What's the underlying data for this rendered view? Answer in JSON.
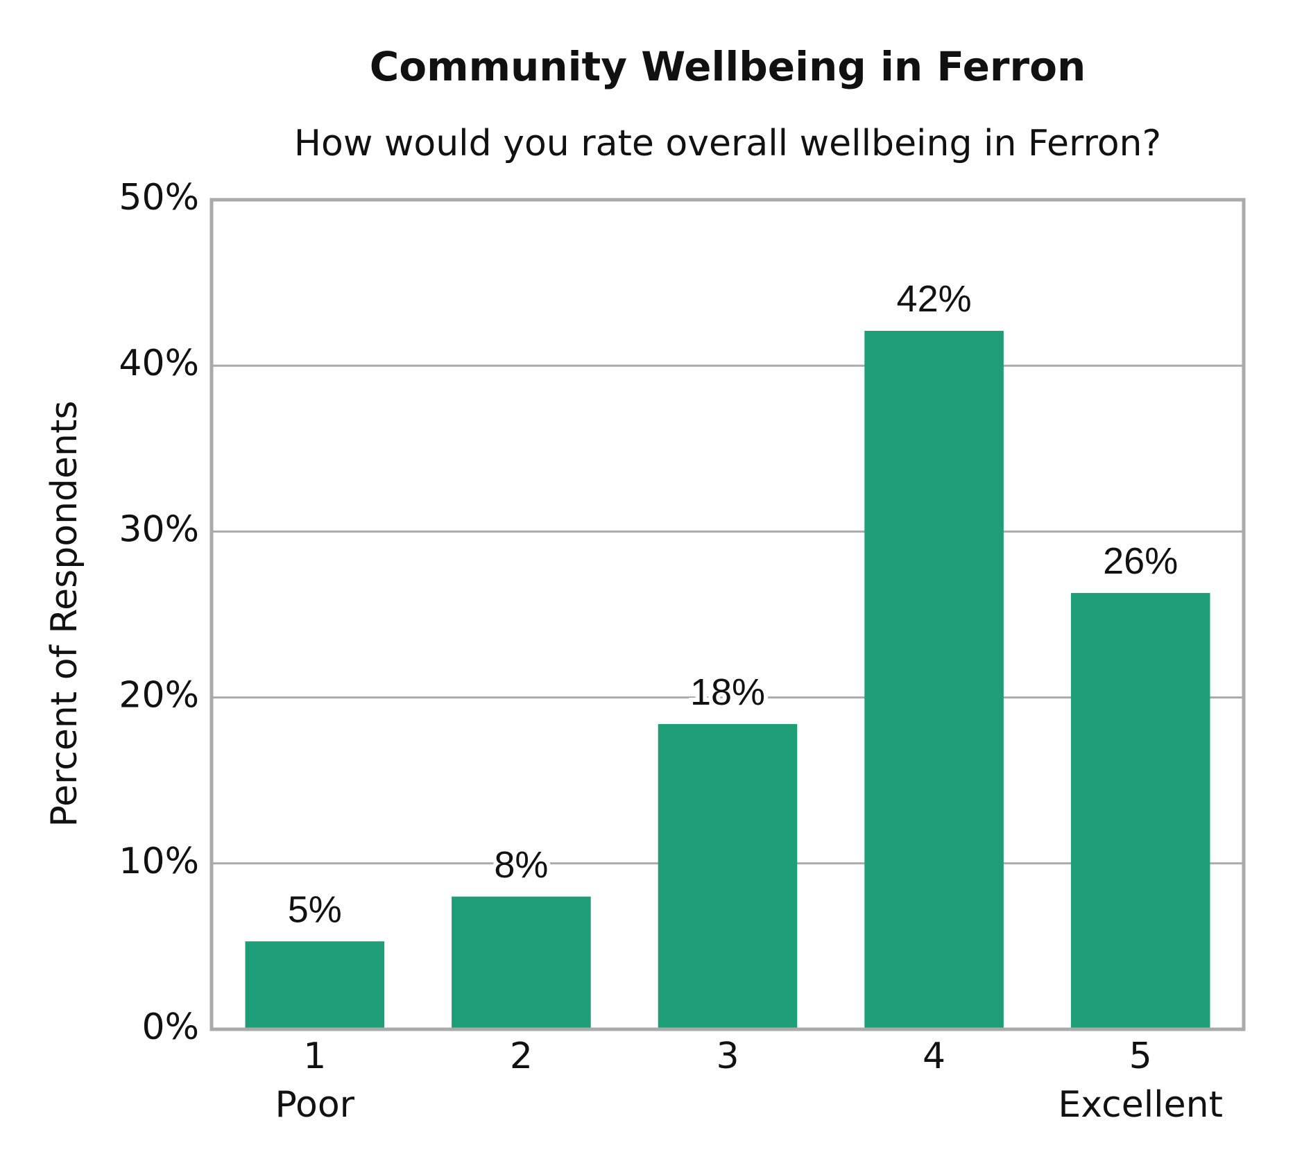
{
  "chart_data": {
    "type": "bar",
    "title": "Community Wellbeing in Ferron",
    "subtitle": "How would you rate overall wellbeing in Ferron?",
    "y_label": "Percent of Respondents",
    "categories": [
      "1",
      "2",
      "3",
      "4",
      "5"
    ],
    "category_sublabels": [
      "Poor",
      null,
      null,
      null,
      "Excellent"
    ],
    "values": [
      5.3,
      8,
      18.4,
      42.1,
      26.3
    ],
    "value_labels": [
      "5%",
      "8%",
      "18%",
      "42%",
      "26%"
    ],
    "color": "#1e9e78",
    "ylim": [
      0,
      50
    ],
    "yticks": [
      {
        "value": 0,
        "label": "0%"
      },
      {
        "value": 10,
        "label": "10%"
      },
      {
        "value": 20,
        "label": "20%"
      },
      {
        "value": 30,
        "label": "30%"
      },
      {
        "value": 40,
        "label": "40%"
      },
      {
        "value": 50,
        "label": "50%"
      }
    ],
    "grid": true
  }
}
